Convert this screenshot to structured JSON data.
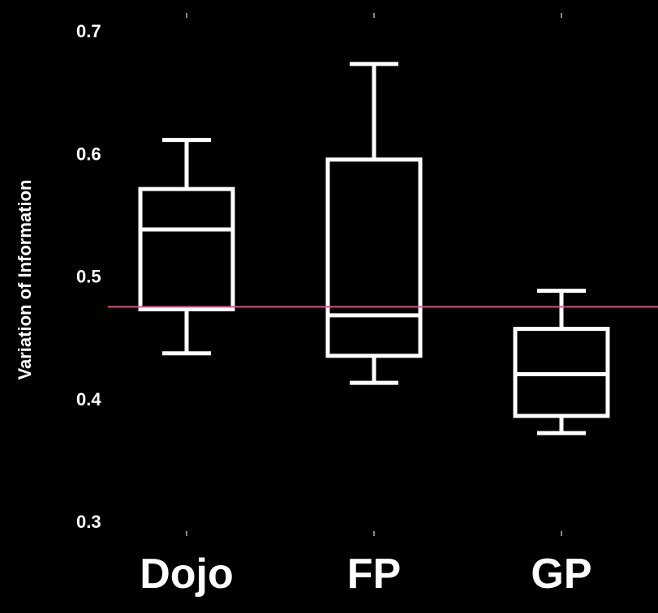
{
  "chart_data": {
    "type": "box",
    "title": "",
    "xlabel": "",
    "ylabel": "Variation of Information",
    "ylim": [
      0.3,
      0.7
    ],
    "yticks": [
      "0.3",
      "0.4",
      "0.5",
      "0.6",
      "0.7"
    ],
    "categories": [
      "Dojo",
      "FP",
      "GP"
    ],
    "boxes": [
      {
        "category": "Dojo",
        "whisker_low": 0.437,
        "q1": 0.473,
        "median": 0.538,
        "q3": 0.571,
        "whisker_high": 0.611
      },
      {
        "category": "FP",
        "whisker_low": 0.413,
        "q1": 0.435,
        "median": 0.468,
        "q3": 0.595,
        "whisker_high": 0.673
      },
      {
        "category": "GP",
        "whisker_low": 0.372,
        "q1": 0.386,
        "median": 0.42,
        "q3": 0.457,
        "whisker_high": 0.488
      }
    ],
    "reference_line": {
      "value": 0.475,
      "color": "#e0508a"
    },
    "colors": {
      "background": "#000000",
      "box": "#ffffff",
      "text": "#ffffff"
    },
    "grid": false,
    "legend": "none"
  }
}
